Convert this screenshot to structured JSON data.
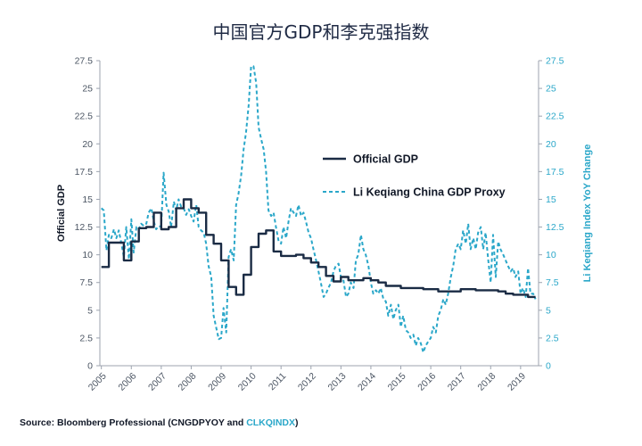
{
  "chart_data": {
    "type": "line",
    "title": "中国官方GDP和李克强指数",
    "ylabel_left": "Official GDP",
    "ylabel_right": "Li Keqiang Index YoY Change",
    "ylim": [
      0,
      27.5
    ],
    "yticks": [
      "0",
      "2.5",
      "5",
      "7.5",
      "10",
      "12.5",
      "15",
      "17.5",
      "20",
      "22.5",
      "25",
      "27.5"
    ],
    "xlim": [
      2004.95,
      2019.6
    ],
    "xticks": [
      "2005",
      "2006",
      "2007",
      "2008",
      "2009",
      "2010",
      "2011",
      "2012",
      "2013",
      "2014",
      "2015",
      "2016",
      "2017",
      "2018",
      "2019"
    ],
    "grid": false,
    "legend_position": "center-right",
    "series": [
      {
        "name": "Official GDP",
        "axis": "left",
        "style": "solid",
        "color": "#1a2b44",
        "points": [
          [
            2005.0,
            8.9
          ],
          [
            2005.25,
            8.9
          ],
          [
            2005.25,
            11.1
          ],
          [
            2005.75,
            11.1
          ],
          [
            2005.75,
            9.5
          ],
          [
            2006.0,
            9.5
          ],
          [
            2006.0,
            11.2
          ],
          [
            2006.25,
            11.2
          ],
          [
            2006.25,
            12.4
          ],
          [
            2006.5,
            12.4
          ],
          [
            2006.5,
            12.5
          ],
          [
            2006.75,
            12.5
          ],
          [
            2006.75,
            13.8
          ],
          [
            2007.0,
            13.8
          ],
          [
            2007.0,
            12.3
          ],
          [
            2007.25,
            12.3
          ],
          [
            2007.25,
            12.5
          ],
          [
            2007.5,
            12.5
          ],
          [
            2007.5,
            14.2
          ],
          [
            2007.75,
            14.2
          ],
          [
            2007.75,
            15.0
          ],
          [
            2008.0,
            15.0
          ],
          [
            2008.0,
            14.2
          ],
          [
            2008.25,
            14.2
          ],
          [
            2008.25,
            13.8
          ],
          [
            2008.5,
            13.8
          ],
          [
            2008.5,
            11.8
          ],
          [
            2008.75,
            11.8
          ],
          [
            2008.75,
            11.0
          ],
          [
            2009.0,
            11.0
          ],
          [
            2009.0,
            9.5
          ],
          [
            2009.25,
            9.5
          ],
          [
            2009.25,
            7.1
          ],
          [
            2009.5,
            7.1
          ],
          [
            2009.5,
            6.4
          ],
          [
            2009.75,
            6.4
          ],
          [
            2009.75,
            8.2
          ],
          [
            2010.0,
            8.2
          ],
          [
            2010.0,
            10.7
          ],
          [
            2010.25,
            10.7
          ],
          [
            2010.25,
            11.9
          ],
          [
            2010.5,
            11.9
          ],
          [
            2010.5,
            12.2
          ],
          [
            2010.75,
            12.2
          ],
          [
            2010.75,
            10.3
          ],
          [
            2011.0,
            10.3
          ],
          [
            2011.0,
            9.9
          ],
          [
            2011.5,
            9.9
          ],
          [
            2011.5,
            10.0
          ],
          [
            2011.75,
            10.0
          ],
          [
            2011.75,
            9.7
          ],
          [
            2012.0,
            9.7
          ],
          [
            2012.0,
            9.3
          ],
          [
            2012.25,
            9.3
          ],
          [
            2012.25,
            8.9
          ],
          [
            2012.5,
            8.9
          ],
          [
            2012.5,
            8.1
          ],
          [
            2012.75,
            8.1
          ],
          [
            2012.75,
            7.6
          ],
          [
            2013.0,
            7.6
          ],
          [
            2013.0,
            8.0
          ],
          [
            2013.25,
            8.0
          ],
          [
            2013.25,
            7.7
          ],
          [
            2013.75,
            7.7
          ],
          [
            2013.75,
            7.9
          ],
          [
            2014.0,
            7.9
          ],
          [
            2014.0,
            7.7
          ],
          [
            2014.25,
            7.7
          ],
          [
            2014.25,
            7.5
          ],
          [
            2014.5,
            7.5
          ],
          [
            2014.5,
            7.2
          ],
          [
            2015.0,
            7.2
          ],
          [
            2015.0,
            7.0
          ],
          [
            2015.75,
            7.0
          ],
          [
            2015.75,
            6.9
          ],
          [
            2016.25,
            6.9
          ],
          [
            2016.25,
            6.7
          ],
          [
            2017.0,
            6.7
          ],
          [
            2017.0,
            6.9
          ],
          [
            2017.5,
            6.9
          ],
          [
            2017.5,
            6.8
          ],
          [
            2018.25,
            6.8
          ],
          [
            2018.25,
            6.7
          ],
          [
            2018.5,
            6.7
          ],
          [
            2018.5,
            6.5
          ],
          [
            2018.75,
            6.5
          ],
          [
            2018.75,
            6.4
          ],
          [
            2019.0,
            6.4
          ],
          [
            2019.0,
            6.4
          ],
          [
            2019.25,
            6.4
          ],
          [
            2019.25,
            6.2
          ],
          [
            2019.5,
            6.2
          ]
        ]
      },
      {
        "name": "Li Keqiang China GDP Proxy",
        "axis": "right",
        "style": "dashed",
        "color": "#2aa7c9",
        "points": [
          [
            2005.0,
            14.2
          ],
          [
            2005.08,
            14.0
          ],
          [
            2005.17,
            10.4
          ],
          [
            2005.25,
            11.8
          ],
          [
            2005.33,
            11.5
          ],
          [
            2005.42,
            12.3
          ],
          [
            2005.5,
            11.5
          ],
          [
            2005.58,
            12.2
          ],
          [
            2005.67,
            11.0
          ],
          [
            2005.75,
            9.8
          ],
          [
            2005.83,
            12.5
          ],
          [
            2005.92,
            9.6
          ],
          [
            2006.0,
            13.2
          ],
          [
            2006.08,
            10.2
          ],
          [
            2006.17,
            12.5
          ],
          [
            2006.25,
            12.3
          ],
          [
            2006.33,
            12.8
          ],
          [
            2006.42,
            12.6
          ],
          [
            2006.5,
            12.8
          ],
          [
            2006.58,
            13.8
          ],
          [
            2006.67,
            14.2
          ],
          [
            2006.75,
            13.0
          ],
          [
            2006.83,
            12.3
          ],
          [
            2006.92,
            12.6
          ],
          [
            2007.0,
            12.5
          ],
          [
            2007.08,
            17.4
          ],
          [
            2007.17,
            14.5
          ],
          [
            2007.25,
            13.9
          ],
          [
            2007.33,
            12.5
          ],
          [
            2007.42,
            14.8
          ],
          [
            2007.5,
            14.0
          ],
          [
            2007.58,
            15.0
          ],
          [
            2007.67,
            14.3
          ],
          [
            2007.75,
            14.2
          ],
          [
            2007.83,
            13.6
          ],
          [
            2007.92,
            14.1
          ],
          [
            2008.0,
            13.5
          ],
          [
            2008.08,
            13.0
          ],
          [
            2008.17,
            14.5
          ],
          [
            2008.25,
            12.5
          ],
          [
            2008.33,
            12.2
          ],
          [
            2008.42,
            12.0
          ],
          [
            2008.5,
            11.0
          ],
          [
            2008.58,
            9.0
          ],
          [
            2008.67,
            8.0
          ],
          [
            2008.75,
            4.5
          ],
          [
            2008.83,
            3.5
          ],
          [
            2008.92,
            2.4
          ],
          [
            2009.0,
            2.5
          ],
          [
            2009.08,
            5.2
          ],
          [
            2009.17,
            3.0
          ],
          [
            2009.25,
            9.8
          ],
          [
            2009.33,
            10.5
          ],
          [
            2009.42,
            9.5
          ],
          [
            2009.5,
            14.5
          ],
          [
            2009.58,
            15.5
          ],
          [
            2009.67,
            17.2
          ],
          [
            2009.75,
            19.5
          ],
          [
            2009.83,
            21.0
          ],
          [
            2009.92,
            23.5
          ],
          [
            2010.0,
            27.0
          ],
          [
            2010.08,
            27.0
          ],
          [
            2010.17,
            25.5
          ],
          [
            2010.25,
            21.5
          ],
          [
            2010.33,
            20.5
          ],
          [
            2010.42,
            19.5
          ],
          [
            2010.5,
            17.5
          ],
          [
            2010.58,
            14.0
          ],
          [
            2010.67,
            13.5
          ],
          [
            2010.75,
            13.8
          ],
          [
            2010.83,
            12.5
          ],
          [
            2010.92,
            11.2
          ],
          [
            2011.0,
            11.0
          ],
          [
            2011.08,
            12.5
          ],
          [
            2011.17,
            11.5
          ],
          [
            2011.25,
            13.0
          ],
          [
            2011.33,
            14.2
          ],
          [
            2011.42,
            13.8
          ],
          [
            2011.5,
            13.5
          ],
          [
            2011.58,
            14.5
          ],
          [
            2011.67,
            13.5
          ],
          [
            2011.75,
            13.8
          ],
          [
            2011.83,
            13.0
          ],
          [
            2011.92,
            12.0
          ],
          [
            2012.0,
            11.5
          ],
          [
            2012.08,
            10.5
          ],
          [
            2012.17,
            9.5
          ],
          [
            2012.25,
            8.5
          ],
          [
            2012.33,
            7.5
          ],
          [
            2012.42,
            6.2
          ],
          [
            2012.5,
            6.5
          ],
          [
            2012.58,
            7.0
          ],
          [
            2012.67,
            7.5
          ],
          [
            2012.75,
            8.5
          ],
          [
            2012.83,
            9.0
          ],
          [
            2012.92,
            9.2
          ],
          [
            2013.0,
            8.0
          ],
          [
            2013.08,
            7.8
          ],
          [
            2013.17,
            6.2
          ],
          [
            2013.25,
            6.5
          ],
          [
            2013.33,
            7.5
          ],
          [
            2013.42,
            7.0
          ],
          [
            2013.5,
            9.5
          ],
          [
            2013.58,
            10.0
          ],
          [
            2013.67,
            11.8
          ],
          [
            2013.75,
            10.5
          ],
          [
            2013.83,
            10.0
          ],
          [
            2013.92,
            9.0
          ],
          [
            2014.0,
            7.5
          ],
          [
            2014.08,
            6.5
          ],
          [
            2014.17,
            6.8
          ],
          [
            2014.25,
            6.5
          ],
          [
            2014.33,
            7.0
          ],
          [
            2014.42,
            6.0
          ],
          [
            2014.5,
            5.8
          ],
          [
            2014.58,
            4.5
          ],
          [
            2014.67,
            5.5
          ],
          [
            2014.75,
            4.2
          ],
          [
            2014.83,
            5.0
          ],
          [
            2014.92,
            5.5
          ],
          [
            2015.0,
            3.5
          ],
          [
            2015.08,
            4.5
          ],
          [
            2015.17,
            3.2
          ],
          [
            2015.25,
            3.0
          ],
          [
            2015.33,
            2.5
          ],
          [
            2015.42,
            2.8
          ],
          [
            2015.5,
            1.8
          ],
          [
            2015.58,
            2.5
          ],
          [
            2015.67,
            2.0
          ],
          [
            2015.75,
            1.2
          ],
          [
            2015.83,
            1.8
          ],
          [
            2015.92,
            2.2
          ],
          [
            2016.0,
            2.5
          ],
          [
            2016.08,
            3.5
          ],
          [
            2016.17,
            3.0
          ],
          [
            2016.25,
            4.5
          ],
          [
            2016.33,
            5.0
          ],
          [
            2016.42,
            6.0
          ],
          [
            2016.5,
            5.5
          ],
          [
            2016.58,
            6.5
          ],
          [
            2016.67,
            8.0
          ],
          [
            2016.75,
            9.0
          ],
          [
            2016.83,
            10.5
          ],
          [
            2016.92,
            11.0
          ],
          [
            2017.0,
            10.5
          ],
          [
            2017.08,
            12.2
          ],
          [
            2017.17,
            11.0
          ],
          [
            2017.25,
            12.8
          ],
          [
            2017.33,
            10.5
          ],
          [
            2017.42,
            11.5
          ],
          [
            2017.5,
            10.5
          ],
          [
            2017.58,
            12.0
          ],
          [
            2017.67,
            12.5
          ],
          [
            2017.75,
            10.5
          ],
          [
            2017.83,
            12.0
          ],
          [
            2017.92,
            9.5
          ],
          [
            2018.0,
            7.5
          ],
          [
            2018.08,
            11.8
          ],
          [
            2018.17,
            8.0
          ],
          [
            2018.25,
            11.2
          ],
          [
            2018.33,
            10.5
          ],
          [
            2018.42,
            10.0
          ],
          [
            2018.5,
            9.5
          ],
          [
            2018.58,
            9.0
          ],
          [
            2018.67,
            8.5
          ],
          [
            2018.75,
            8.8
          ],
          [
            2018.83,
            8.0
          ],
          [
            2018.92,
            8.5
          ],
          [
            2019.0,
            6.5
          ],
          [
            2019.08,
            7.0
          ],
          [
            2019.17,
            6.2
          ],
          [
            2019.25,
            8.8
          ],
          [
            2019.33,
            6.5
          ],
          [
            2019.42,
            6.5
          ],
          [
            2019.5,
            6.0
          ]
        ]
      }
    ]
  },
  "source": {
    "prefix": "Source: Bloomberg Professional (CNGDPYOY and ",
    "accent": "CLKQINDX",
    "suffix": ")"
  },
  "colors": {
    "official": "#1a2b44",
    "proxy": "#2aa7c9",
    "axis": "#9ca3af"
  }
}
